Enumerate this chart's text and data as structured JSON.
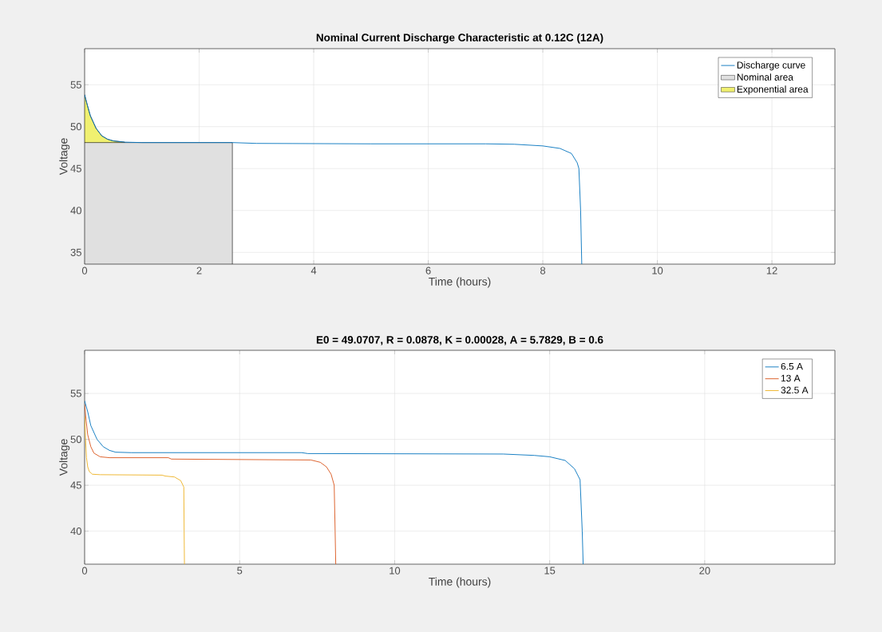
{
  "chart_data": [
    {
      "type": "line",
      "title": "Nominal Current Discharge Characteristic at 0.12C (12A)",
      "xlabel": "Time (hours)",
      "ylabel": "Voltage",
      "xlim": [
        0,
        13.1
      ],
      "ylim": [
        33.6,
        59.3
      ],
      "xticks": [
        0,
        2,
        4,
        6,
        8,
        10,
        12
      ],
      "yticks": [
        35,
        40,
        45,
        50,
        55
      ],
      "grid": true,
      "legend": "top right",
      "series": [
        {
          "name": "Discharge curve",
          "type": "line",
          "color": "#0072bd",
          "x": [
            0,
            0.05,
            0.1,
            0.2,
            0.3,
            0.4,
            0.5,
            0.7,
            1,
            2.58,
            3,
            5,
            7,
            7.5,
            8,
            8.3,
            8.5,
            8.6,
            8.63,
            8.66,
            8.68
          ],
          "values": [
            53.8,
            52.5,
            51.3,
            49.8,
            48.9,
            48.5,
            48.3,
            48.15,
            48.1,
            48.1,
            48.0,
            47.95,
            47.95,
            47.9,
            47.7,
            47.4,
            46.8,
            45.7,
            45.0,
            40,
            33.6
          ]
        },
        {
          "name": "Nominal area",
          "type": "area",
          "color": "#e0e0e0",
          "x": [
            0,
            2.58
          ],
          "values": [
            48.1,
            48.1
          ]
        },
        {
          "name": "Exponential area",
          "type": "area",
          "color": "#f0f070",
          "x": [
            0,
            0.05,
            0.1,
            0.2,
            0.3,
            0.4,
            0.5,
            0.7
          ],
          "values": [
            53.8,
            52.5,
            51.3,
            49.8,
            48.9,
            48.5,
            48.3,
            48.15
          ]
        }
      ]
    },
    {
      "type": "line",
      "title": "E0 = 49.0707, R = 0.0878, K = 0.00028, A = 5.7829, B = 0.6",
      "xlabel": "Time (hours)",
      "ylabel": "Voltage",
      "xlim": [
        0,
        24.2
      ],
      "ylim": [
        36.4,
        59.7
      ],
      "xticks": [
        0,
        5,
        10,
        15,
        20
      ],
      "yticks": [
        40,
        45,
        50,
        55
      ],
      "grid": true,
      "legend": "top right",
      "series": [
        {
          "name": "6.5 A",
          "color": "#0072bd",
          "x": [
            0,
            0.1,
            0.2,
            0.4,
            0.6,
            0.8,
            1,
            1.5,
            7,
            7.2,
            13.5,
            14.5,
            15,
            15.5,
            15.8,
            15.98,
            16.05,
            16.08
          ],
          "values": [
            54.2,
            53,
            51.5,
            50.0,
            49.2,
            48.8,
            48.6,
            48.55,
            48.55,
            48.45,
            48.4,
            48.25,
            48.1,
            47.7,
            46.8,
            45.6,
            40,
            36.4
          ]
        },
        {
          "name": "13 A",
          "color": "#d95319",
          "x": [
            0,
            0.05,
            0.1,
            0.2,
            0.3,
            0.5,
            0.8,
            2.7,
            2.8,
            7.3,
            7.6,
            7.8,
            7.95,
            8.05,
            8.08,
            8.1
          ],
          "values": [
            53.8,
            52,
            50.5,
            49.2,
            48.5,
            48.1,
            48.0,
            48.0,
            47.85,
            47.75,
            47.5,
            47.0,
            46.2,
            45.0,
            40,
            36.4
          ]
        },
        {
          "name": "32.5 A",
          "color": "#edb120",
          "x": [
            0,
            0.03,
            0.06,
            0.1,
            0.15,
            0.25,
            0.5,
            2.5,
            2.6,
            2.9,
            3.1,
            3.2,
            3.21,
            3.22
          ],
          "values": [
            52.5,
            50,
            48,
            47,
            46.5,
            46.2,
            46.15,
            46.1,
            46.0,
            45.9,
            45.5,
            44.8,
            40,
            36.4
          ]
        }
      ]
    }
  ]
}
